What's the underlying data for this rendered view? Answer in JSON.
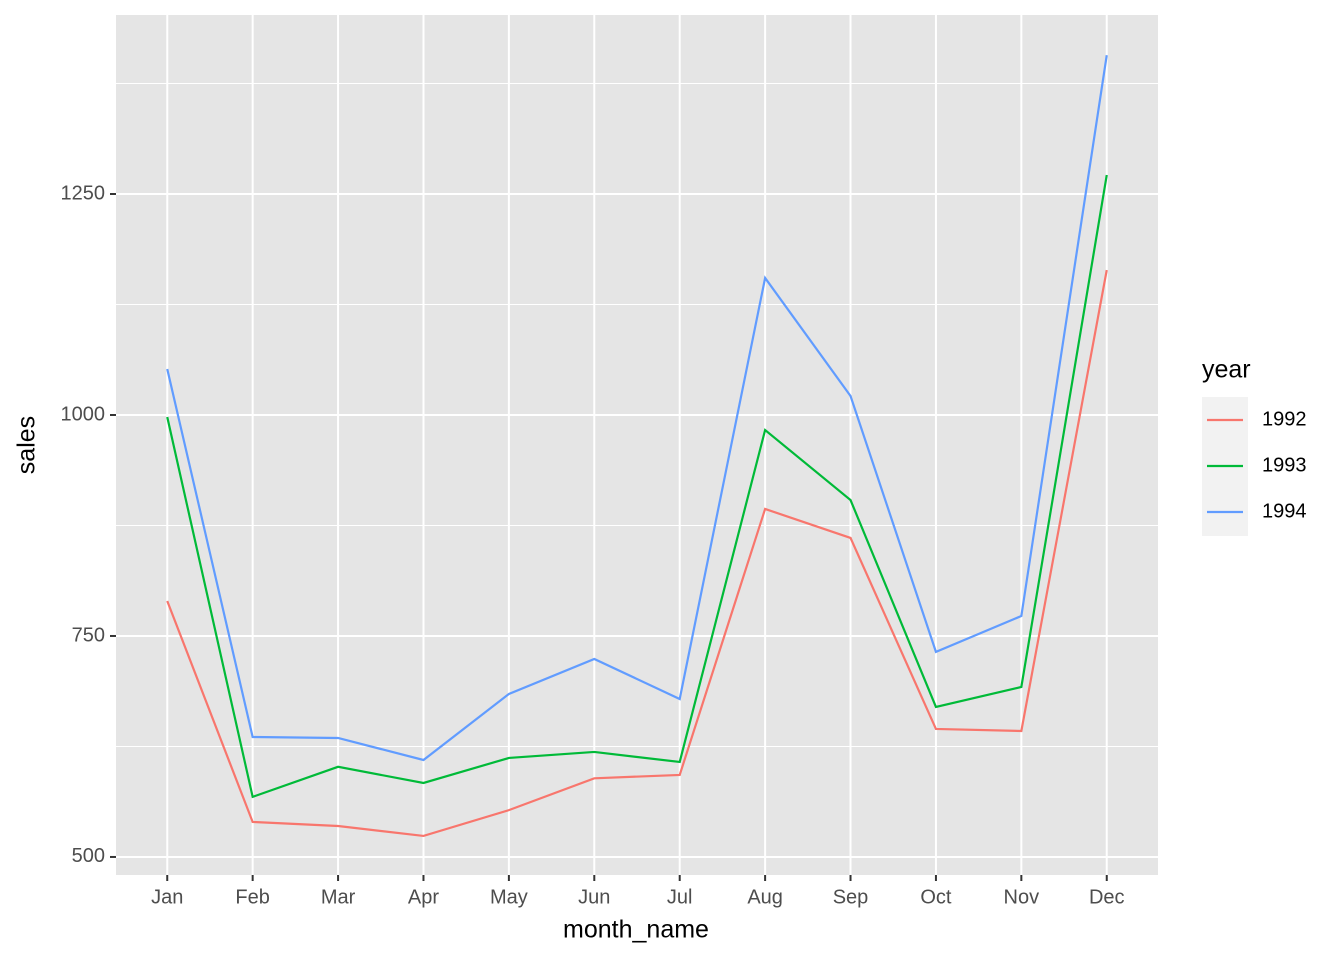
{
  "chart_data": {
    "type": "line",
    "x_label": "month_name",
    "y_label": "sales",
    "categories": [
      "Jan",
      "Feb",
      "Mar",
      "Apr",
      "May",
      "Jun",
      "Jul",
      "Aug",
      "Sep",
      "Oct",
      "Nov",
      "Dec"
    ],
    "series": [
      {
        "name": "1992",
        "color": "#f8766d",
        "values": [
          789.6,
          539.6,
          535,
          523.8,
          553,
          589,
          592.8,
          893.7,
          860.9,
          644.8,
          642.5,
          1164
        ]
      },
      {
        "name": "1993",
        "color": "#00ba38",
        "values": [
          997.7,
          568,
          602,
          583.7,
          612,
          618.8,
          607.5,
          983,
          903.8,
          669.7,
          692.3,
          1271.5
        ]
      },
      {
        "name": "1994",
        "color": "#619cff",
        "values": [
          1052,
          635.7,
          634.6,
          609.7,
          684.4,
          724,
          678.7,
          1155,
          1021.5,
          732,
          772.6,
          1407
        ]
      }
    ],
    "legend_title": "year",
    "ylim": [
      479.6,
      1452.5
    ],
    "yticks": [
      500,
      750,
      1000,
      1250
    ],
    "minor_yticks": [
      625,
      875,
      1125,
      1375
    ],
    "grid": true,
    "legend": "right"
  }
}
